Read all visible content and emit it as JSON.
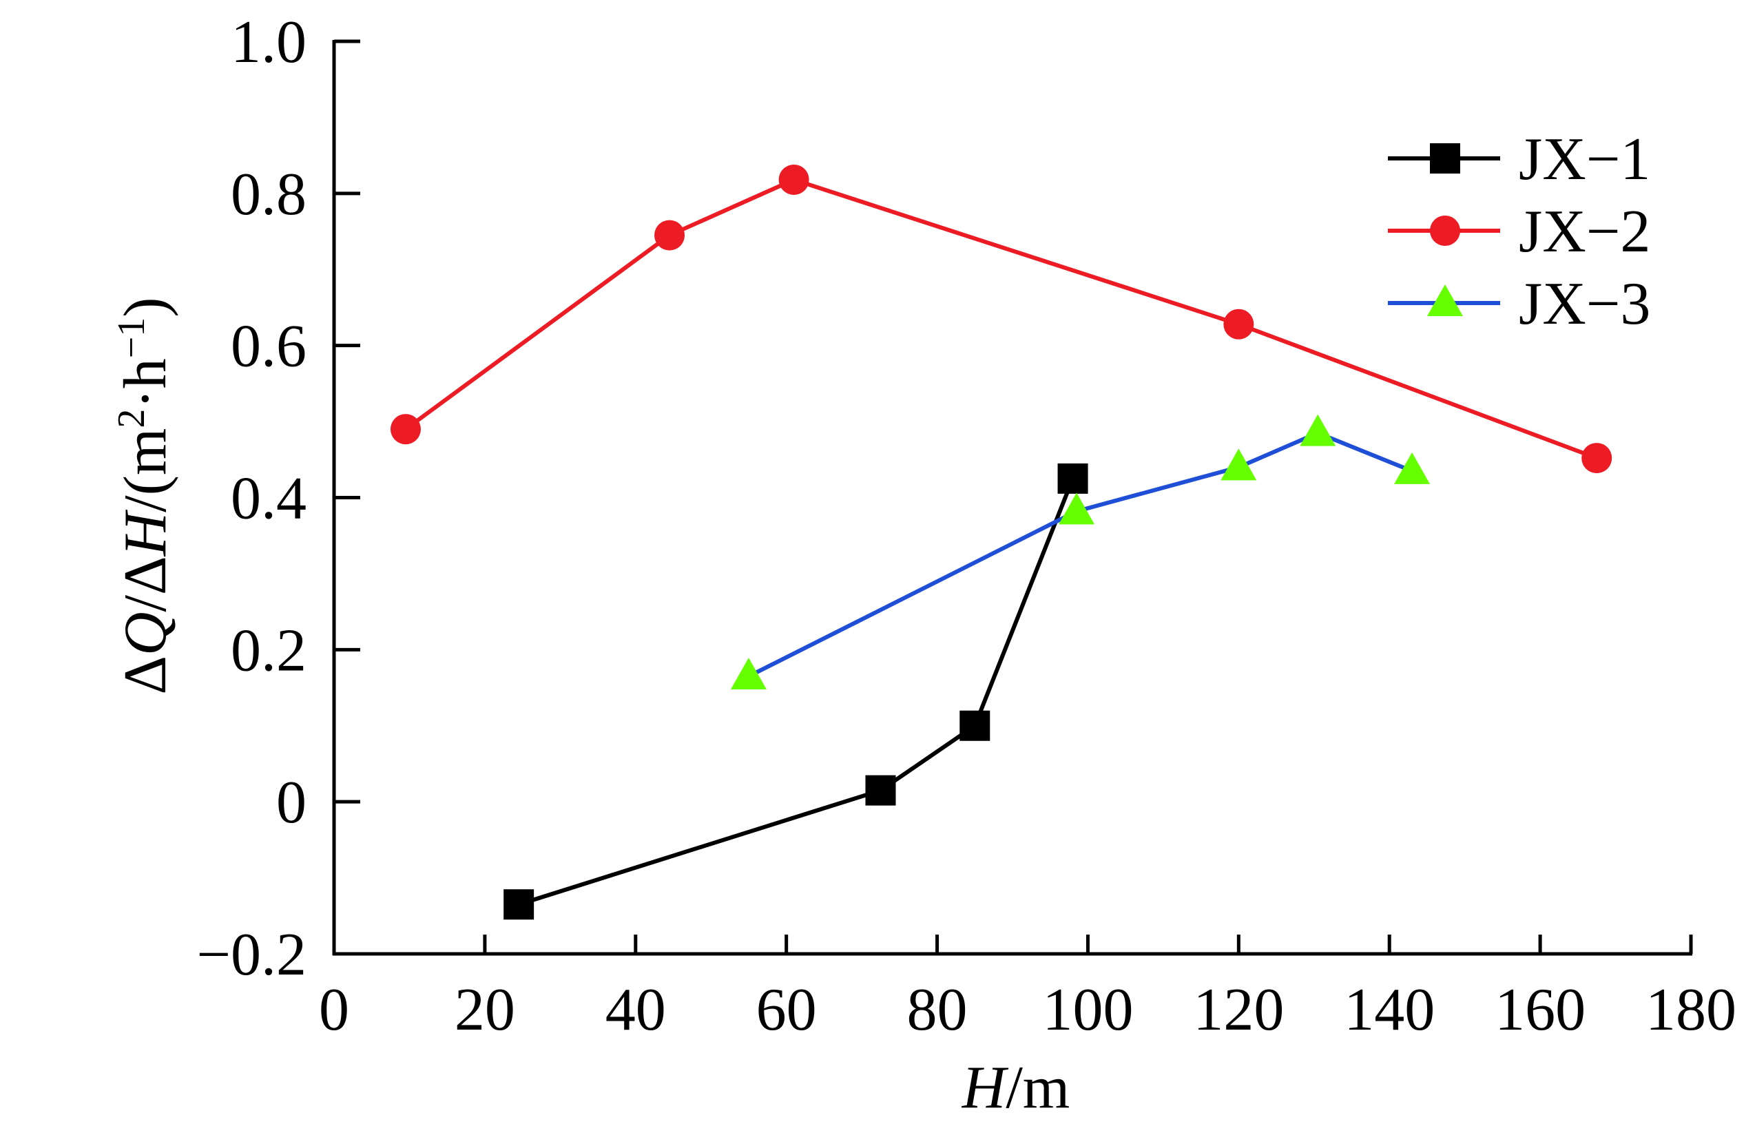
{
  "chart_data": {
    "type": "line",
    "xlabel_italic": "H",
    "xlabel_rest": "/m",
    "ylabel": {
      "p1": "Δ",
      "p2": "Q",
      "p3": "/Δ",
      "p4": "H",
      "p5": "/(m",
      "p6": "2",
      "p7": "·h",
      "p8": "−1",
      "p9": ")"
    },
    "xlim": [
      0,
      180
    ],
    "ylim": [
      -0.2,
      1.0
    ],
    "xticks": [
      0,
      20,
      40,
      60,
      80,
      100,
      120,
      140,
      160,
      180
    ],
    "yticks": [
      -0.2,
      0,
      0.2,
      0.4,
      0.6,
      0.8,
      1.0
    ],
    "xtick_labels": [
      "0",
      "20",
      "40",
      "60",
      "80",
      "100",
      "120",
      "140",
      "160",
      "180"
    ],
    "ytick_labels": [
      "−0.2",
      "0",
      "0.2",
      "0.4",
      "0.6",
      "0.8",
      "1.0"
    ],
    "legend_position": "top-right",
    "series": [
      {
        "name": "JX−1",
        "color": "#000000",
        "marker": "square",
        "x": [
          24.5,
          72.5,
          85,
          98
        ],
        "y": [
          -0.135,
          0.015,
          0.1,
          0.425
        ]
      },
      {
        "name": "JX−2",
        "color": "#ed1c24",
        "marker_color": "#ed1c24",
        "marker": "circle",
        "x": [
          9.5,
          44.5,
          61,
          120,
          167.5
        ],
        "y": [
          0.49,
          0.745,
          0.818,
          0.628,
          0.452
        ]
      },
      {
        "name": "JX−3",
        "color": "#1e4fd6",
        "marker_color": "#66ff00",
        "marker": "triangle",
        "x": [
          55,
          98.5,
          120,
          130.5,
          143
        ],
        "y": [
          0.165,
          0.382,
          0.44,
          0.485,
          0.435
        ]
      }
    ]
  }
}
